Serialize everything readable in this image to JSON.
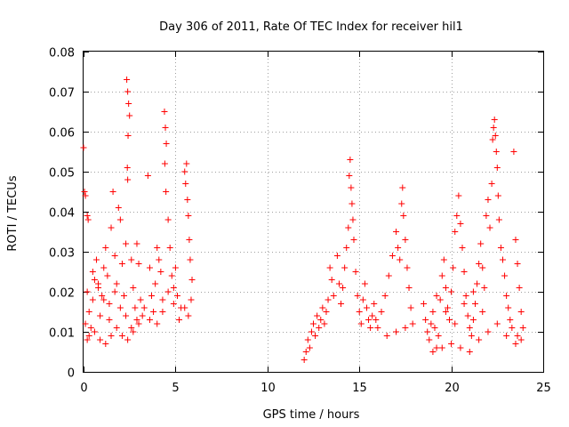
{
  "chart_data": {
    "type": "scatter",
    "title": "Day 306 of 2011, Rate Of TEC Index for receiver hil1",
    "xlabel": "GPS time / hours",
    "ylabel": "ROTI / TECUs",
    "xlim": [
      0,
      25
    ],
    "ylim": [
      0,
      0.08
    ],
    "xticks": [
      0,
      5,
      10,
      15,
      20,
      25
    ],
    "xtick_labels": [
      "0",
      "5",
      "10",
      "15",
      "20",
      "25"
    ],
    "yticks": [
      0,
      0.01,
      0.02,
      0.03,
      0.04,
      0.05,
      0.06,
      0.07,
      0.08
    ],
    "ytick_labels": [
      "0",
      "0.01",
      "0.02",
      "0.03",
      "0.04",
      "0.05",
      "0.06",
      "0.07",
      "0.08"
    ],
    "grid": true,
    "marker": "plus",
    "color": "#ff0000",
    "series": [
      {
        "name": "ROTI",
        "points": [
          [
            0.0,
            0.056
          ],
          [
            0.05,
            0.045
          ],
          [
            0.1,
            0.044
          ],
          [
            0.2,
            0.039
          ],
          [
            0.25,
            0.038
          ],
          [
            0.1,
            0.012
          ],
          [
            0.2,
            0.008
          ],
          [
            0.3,
            0.015
          ],
          [
            0.4,
            0.011
          ],
          [
            0.5,
            0.018
          ],
          [
            0.6,
            0.023
          ],
          [
            0.7,
            0.028
          ],
          [
            0.8,
            0.021
          ],
          [
            0.9,
            0.014
          ],
          [
            1.0,
            0.019
          ],
          [
            1.1,
            0.026
          ],
          [
            1.2,
            0.031
          ],
          [
            1.3,
            0.024
          ],
          [
            1.4,
            0.017
          ],
          [
            1.5,
            0.036
          ],
          [
            1.6,
            0.045
          ],
          [
            1.7,
            0.029
          ],
          [
            1.8,
            0.022
          ],
          [
            1.9,
            0.041
          ],
          [
            2.0,
            0.038
          ],
          [
            2.1,
            0.027
          ],
          [
            2.2,
            0.019
          ],
          [
            2.3,
            0.032
          ],
          [
            2.35,
            0.073
          ],
          [
            2.4,
            0.07
          ],
          [
            2.45,
            0.067
          ],
          [
            2.5,
            0.064
          ],
          [
            2.42,
            0.059
          ],
          [
            2.38,
            0.051
          ],
          [
            2.4,
            0.048
          ],
          [
            2.6,
            0.028
          ],
          [
            2.7,
            0.021
          ],
          [
            2.8,
            0.016
          ],
          [
            2.9,
            0.032
          ],
          [
            3.0,
            0.027
          ],
          [
            3.1,
            0.018
          ],
          [
            3.2,
            0.014
          ],
          [
            3.5,
            0.049
          ],
          [
            3.6,
            0.026
          ],
          [
            3.7,
            0.019
          ],
          [
            3.8,
            0.015
          ],
          [
            3.9,
            0.022
          ],
          [
            4.0,
            0.031
          ],
          [
            4.1,
            0.028
          ],
          [
            4.2,
            0.025
          ],
          [
            4.3,
            0.018
          ],
          [
            4.4,
            0.065
          ],
          [
            4.45,
            0.061
          ],
          [
            4.5,
            0.057
          ],
          [
            4.42,
            0.052
          ],
          [
            4.48,
            0.045
          ],
          [
            4.6,
            0.038
          ],
          [
            4.7,
            0.031
          ],
          [
            4.8,
            0.024
          ],
          [
            4.9,
            0.021
          ],
          [
            5.0,
            0.026
          ],
          [
            5.1,
            0.019
          ],
          [
            5.3,
            0.016
          ],
          [
            5.5,
            0.05
          ],
          [
            5.6,
            0.052
          ],
          [
            5.55,
            0.047
          ],
          [
            5.65,
            0.043
          ],
          [
            5.7,
            0.039
          ],
          [
            5.75,
            0.033
          ],
          [
            5.8,
            0.028
          ],
          [
            5.9,
            0.023
          ],
          [
            5.85,
            0.018
          ],
          [
            5.7,
            0.014
          ],
          [
            0.3,
            0.009
          ],
          [
            0.6,
            0.01
          ],
          [
            0.9,
            0.008
          ],
          [
            1.2,
            0.007
          ],
          [
            1.5,
            0.009
          ],
          [
            1.8,
            0.011
          ],
          [
            2.1,
            0.009
          ],
          [
            2.4,
            0.008
          ],
          [
            2.7,
            0.01
          ],
          [
            3.0,
            0.012
          ],
          [
            3.3,
            0.016
          ],
          [
            3.6,
            0.013
          ],
          [
            0.2,
            0.02
          ],
          [
            0.5,
            0.025
          ],
          [
            0.8,
            0.022
          ],
          [
            1.1,
            0.018
          ],
          [
            1.4,
            0.013
          ],
          [
            1.7,
            0.02
          ],
          [
            2.0,
            0.016
          ],
          [
            2.3,
            0.014
          ],
          [
            2.6,
            0.011
          ],
          [
            2.9,
            0.013
          ],
          [
            4.0,
            0.012
          ],
          [
            4.3,
            0.015
          ],
          [
            4.6,
            0.02
          ],
          [
            4.9,
            0.017
          ],
          [
            5.2,
            0.013
          ],
          [
            5.5,
            0.016
          ],
          [
            12.0,
            0.003
          ],
          [
            12.1,
            0.005
          ],
          [
            12.2,
            0.008
          ],
          [
            12.3,
            0.006
          ],
          [
            12.4,
            0.01
          ],
          [
            12.5,
            0.012
          ],
          [
            12.6,
            0.009
          ],
          [
            12.7,
            0.014
          ],
          [
            12.8,
            0.011
          ],
          [
            12.9,
            0.013
          ],
          [
            13.0,
            0.016
          ],
          [
            13.1,
            0.012
          ],
          [
            13.2,
            0.015
          ],
          [
            13.3,
            0.018
          ],
          [
            13.4,
            0.026
          ],
          [
            13.5,
            0.023
          ],
          [
            13.6,
            0.019
          ],
          [
            13.8,
            0.029
          ],
          [
            13.9,
            0.022
          ],
          [
            14.0,
            0.017
          ],
          [
            14.1,
            0.021
          ],
          [
            14.2,
            0.026
          ],
          [
            14.3,
            0.031
          ],
          [
            14.4,
            0.036
          ],
          [
            14.45,
            0.049
          ],
          [
            14.5,
            0.053
          ],
          [
            14.55,
            0.046
          ],
          [
            14.6,
            0.042
          ],
          [
            14.65,
            0.038
          ],
          [
            14.7,
            0.033
          ],
          [
            14.8,
            0.025
          ],
          [
            14.9,
            0.019
          ],
          [
            15.0,
            0.015
          ],
          [
            15.1,
            0.012
          ],
          [
            15.2,
            0.018
          ],
          [
            15.3,
            0.022
          ],
          [
            15.4,
            0.016
          ],
          [
            15.5,
            0.013
          ],
          [
            15.6,
            0.011
          ],
          [
            15.7,
            0.014
          ],
          [
            15.8,
            0.017
          ],
          [
            15.9,
            0.013
          ],
          [
            16.0,
            0.011
          ],
          [
            16.2,
            0.015
          ],
          [
            16.4,
            0.019
          ],
          [
            16.6,
            0.024
          ],
          [
            16.8,
            0.029
          ],
          [
            17.0,
            0.035
          ],
          [
            17.1,
            0.031
          ],
          [
            17.2,
            0.028
          ],
          [
            17.3,
            0.042
          ],
          [
            17.35,
            0.046
          ],
          [
            17.4,
            0.039
          ],
          [
            17.5,
            0.033
          ],
          [
            17.6,
            0.026
          ],
          [
            17.7,
            0.021
          ],
          [
            17.8,
            0.016
          ],
          [
            17.9,
            0.012
          ],
          [
            16.5,
            0.009
          ],
          [
            17.0,
            0.01
          ],
          [
            17.5,
            0.011
          ],
          [
            18.5,
            0.017
          ],
          [
            18.6,
            0.013
          ],
          [
            18.7,
            0.01
          ],
          [
            18.8,
            0.008
          ],
          [
            18.9,
            0.012
          ],
          [
            19.0,
            0.015
          ],
          [
            19.1,
            0.011
          ],
          [
            19.2,
            0.006
          ],
          [
            19.3,
            0.009
          ],
          [
            19.4,
            0.018
          ],
          [
            19.5,
            0.024
          ],
          [
            19.6,
            0.028
          ],
          [
            19.7,
            0.021
          ],
          [
            19.8,
            0.016
          ],
          [
            19.9,
            0.013
          ],
          [
            20.0,
            0.02
          ],
          [
            20.1,
            0.026
          ],
          [
            20.2,
            0.035
          ],
          [
            20.3,
            0.039
          ],
          [
            20.4,
            0.044
          ],
          [
            20.5,
            0.037
          ],
          [
            20.6,
            0.031
          ],
          [
            20.7,
            0.025
          ],
          [
            20.8,
            0.019
          ],
          [
            20.9,
            0.014
          ],
          [
            21.0,
            0.011
          ],
          [
            21.1,
            0.009
          ],
          [
            21.2,
            0.013
          ],
          [
            21.3,
            0.017
          ],
          [
            21.4,
            0.022
          ],
          [
            21.5,
            0.027
          ],
          [
            21.6,
            0.032
          ],
          [
            21.7,
            0.026
          ],
          [
            21.8,
            0.021
          ],
          [
            21.9,
            0.039
          ],
          [
            22.0,
            0.043
          ],
          [
            22.1,
            0.036
          ],
          [
            22.2,
            0.047
          ],
          [
            22.25,
            0.058
          ],
          [
            22.3,
            0.061
          ],
          [
            22.35,
            0.063
          ],
          [
            22.4,
            0.059
          ],
          [
            22.45,
            0.055
          ],
          [
            22.5,
            0.051
          ],
          [
            22.55,
            0.044
          ],
          [
            22.6,
            0.038
          ],
          [
            22.7,
            0.031
          ],
          [
            22.8,
            0.028
          ],
          [
            22.9,
            0.024
          ],
          [
            23.0,
            0.019
          ],
          [
            23.1,
            0.016
          ],
          [
            23.2,
            0.013
          ],
          [
            23.3,
            0.011
          ],
          [
            23.4,
            0.055
          ],
          [
            23.5,
            0.033
          ],
          [
            23.6,
            0.027
          ],
          [
            23.7,
            0.021
          ],
          [
            23.8,
            0.015
          ],
          [
            23.9,
            0.011
          ],
          [
            23.8,
            0.008
          ],
          [
            23.6,
            0.009
          ],
          [
            19.0,
            0.005
          ],
          [
            19.5,
            0.006
          ],
          [
            20.0,
            0.007
          ],
          [
            20.5,
            0.006
          ],
          [
            21.0,
            0.005
          ],
          [
            21.5,
            0.008
          ],
          [
            22.0,
            0.01
          ],
          [
            22.5,
            0.012
          ],
          [
            23.0,
            0.009
          ],
          [
            23.5,
            0.007
          ],
          [
            19.2,
            0.019
          ],
          [
            19.7,
            0.015
          ],
          [
            20.2,
            0.012
          ],
          [
            20.7,
            0.017
          ],
          [
            21.2,
            0.02
          ],
          [
            21.7,
            0.015
          ]
        ]
      }
    ]
  }
}
